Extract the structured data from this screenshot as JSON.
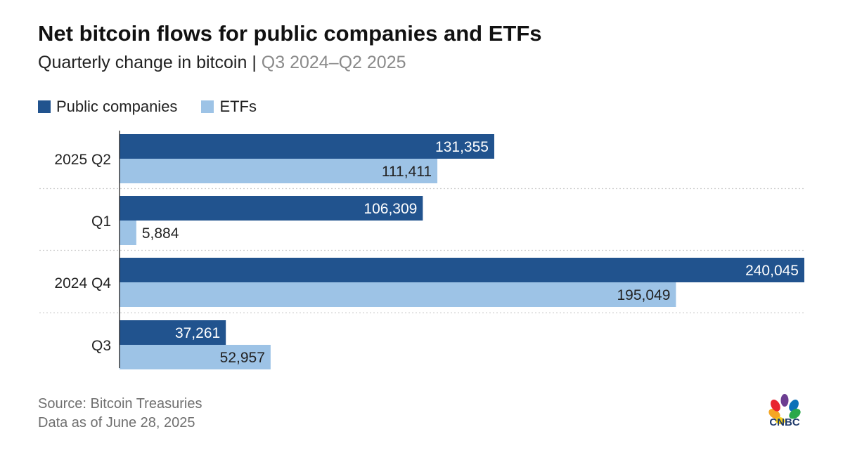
{
  "title": "Net bitcoin flows for public companies and ETFs",
  "subtitle": {
    "main": "Quarterly change in bitcoin | ",
    "range": "Q3 2024–Q2 2025"
  },
  "legend": {
    "public": "Public companies",
    "etf": "ETFs"
  },
  "colors": {
    "public": "#21538e",
    "etf": "#9dc3e6",
    "grid": "#cfcfcf",
    "axis": "#222222"
  },
  "chart_data": {
    "type": "bar",
    "orientation": "horizontal",
    "categories": [
      "2025 Q2",
      "Q1",
      "2024 Q4",
      "Q3"
    ],
    "series": [
      {
        "name": "Public companies",
        "values": [
          131355,
          106309,
          240045,
          37261
        ],
        "labels": [
          "131,355",
          "106,309",
          "240,045",
          "37,261"
        ]
      },
      {
        "name": "ETFs",
        "values": [
          111411,
          5884,
          195049,
          52957
        ],
        "labels": [
          "111,411",
          "5,884",
          "195,049",
          "52,957"
        ]
      }
    ],
    "xlim": [
      0,
      240045
    ],
    "grid": false
  },
  "footer": {
    "source": "Source: Bitcoin Treasuries",
    "asof": "Data as of June 28, 2025"
  },
  "logo_text": "CNBC"
}
